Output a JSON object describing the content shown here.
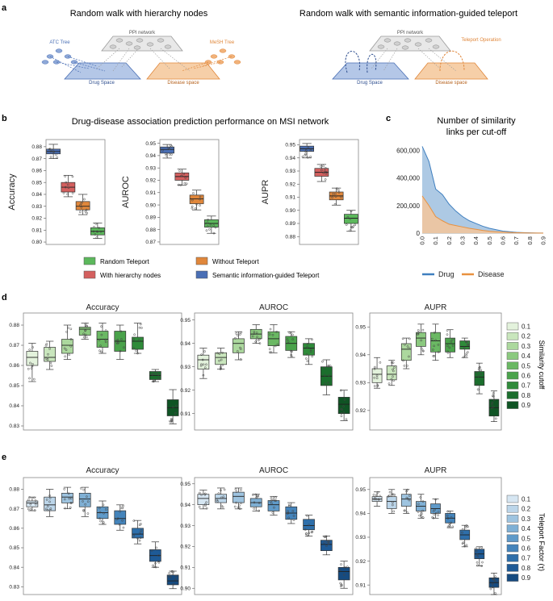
{
  "panels": {
    "a": {
      "letter": "a",
      "title_left": "Random walk with hierarchy nodes",
      "title_right": "Random walk with semantic information-guided teleport",
      "left": {
        "ppi": "PPI network",
        "atc": "ATC Tree",
        "mesh": "MeSH Tree",
        "drug": "Drug Space",
        "disease": "Disease space"
      },
      "right": {
        "ppi": "PPI network",
        "teleport": "Teleport Operation",
        "drug": "Drug Space",
        "disease": "Disease space"
      }
    },
    "b": {
      "letter": "b",
      "title": "Drug-disease association prediction performance on MSI network",
      "legend": [
        "Random Teleport",
        "With hierarchy nodes",
        "Without Teleport",
        "Semantic information-guided Teleport"
      ]
    },
    "c": {
      "letter": "c",
      "title_line1": "Number of similarity",
      "title_line2": "links per cut-off"
    },
    "d": {
      "letter": "d",
      "legend_title": "Similarity cutoff"
    },
    "e": {
      "letter": "e",
      "legend_title": "Teleport Factor (τ)"
    }
  },
  "colors": {
    "b": [
      "#4a6fb5",
      "#d4605f",
      "#e0873b",
      "#5cb85c"
    ],
    "d": [
      "#e3f2dc",
      "#c9e6bd",
      "#acd89e",
      "#8bc97f",
      "#6ab863",
      "#4aa34b",
      "#2f8b3a",
      "#1b6e2d",
      "#0f5424"
    ],
    "e": [
      "#d6e6f2",
      "#bcd6ea",
      "#9ec4e0",
      "#7fb0d5",
      "#5f9ac9",
      "#4484bb",
      "#2e6faa",
      "#1e5a96",
      "#164b80"
    ]
  },
  "chart_data": [
    {
      "id": "b-accuracy",
      "type": "box",
      "ylabel": "Accuracy",
      "ylim": [
        0.798,
        0.886
      ],
      "ticks": [
        0.8,
        0.81,
        0.82,
        0.83,
        0.84,
        0.85,
        0.86,
        0.87,
        0.88
      ],
      "tick_labels": [
        "0.80",
        "0.81",
        "0.82",
        "0.83",
        "0.84",
        "0.85",
        "0.86",
        "0.87",
        "0.88"
      ],
      "boxes": [
        {
          "min": 0.87,
          "q1": 0.874,
          "med": 0.876,
          "q3": 0.878,
          "max": 0.882
        },
        {
          "min": 0.838,
          "q1": 0.842,
          "med": 0.846,
          "q3": 0.85,
          "max": 0.856
        },
        {
          "min": 0.823,
          "q1": 0.827,
          "med": 0.83,
          "q3": 0.834,
          "max": 0.84
        },
        {
          "min": 0.803,
          "q1": 0.806,
          "med": 0.809,
          "q3": 0.812,
          "max": 0.816
        }
      ]
    },
    {
      "id": "b-auroc",
      "type": "box",
      "ylabel": "AUROC",
      "ylim": [
        0.868,
        0.953
      ],
      "ticks": [
        0.87,
        0.88,
        0.89,
        0.9,
        0.91,
        0.92,
        0.93,
        0.94,
        0.95
      ],
      "tick_labels": [
        "0.87",
        "0.88",
        "0.89",
        "0.90",
        "0.91",
        "0.92",
        "0.93",
        "0.94",
        "0.95"
      ],
      "boxes": [
        {
          "min": 0.938,
          "q1": 0.942,
          "med": 0.945,
          "q3": 0.947,
          "max": 0.949
        },
        {
          "min": 0.916,
          "q1": 0.92,
          "med": 0.923,
          "q3": 0.926,
          "max": 0.929
        },
        {
          "min": 0.896,
          "q1": 0.901,
          "med": 0.905,
          "q3": 0.908,
          "max": 0.912
        },
        {
          "min": 0.877,
          "q1": 0.882,
          "med": 0.885,
          "q3": 0.888,
          "max": 0.891
        }
      ]
    },
    {
      "id": "b-aupr",
      "type": "box",
      "ylabel": "AUPR",
      "ylim": [
        0.874,
        0.954
      ],
      "ticks": [
        0.88,
        0.89,
        0.9,
        0.91,
        0.92,
        0.93,
        0.94,
        0.95
      ],
      "tick_labels": [
        "0.88",
        "0.89",
        "0.90",
        "0.91",
        "0.92",
        "0.93",
        "0.94",
        "0.95"
      ],
      "boxes": [
        {
          "min": 0.94,
          "q1": 0.945,
          "med": 0.947,
          "q3": 0.949,
          "max": 0.951
        },
        {
          "min": 0.922,
          "q1": 0.926,
          "med": 0.929,
          "q3": 0.932,
          "max": 0.935
        },
        {
          "min": 0.904,
          "q1": 0.908,
          "med": 0.911,
          "q3": 0.914,
          "max": 0.917
        },
        {
          "min": 0.884,
          "q1": 0.89,
          "med": 0.894,
          "q3": 0.897,
          "max": 0.9
        }
      ]
    },
    {
      "id": "c-links",
      "type": "area",
      "x": [
        0.0,
        0.05,
        0.1,
        0.15,
        0.2,
        0.25,
        0.3,
        0.35,
        0.4,
        0.45,
        0.5,
        0.55,
        0.6,
        0.65,
        0.7,
        0.75,
        0.8,
        0.85,
        0.9
      ],
      "xtick_labels": [
        "0.0",
        "0.1",
        "0.2",
        "0.3",
        "0.4",
        "0.5",
        "0.6",
        "0.7",
        "0.8",
        "0.9"
      ],
      "ylim": [
        0,
        650000
      ],
      "ticks": [
        0,
        200000,
        400000,
        600000
      ],
      "tick_labels": [
        "0",
        "200,000",
        "400,000",
        "600,000"
      ],
      "series": [
        {
          "name": "Drug",
          "values": [
            630000,
            520000,
            320000,
            280000,
            210000,
            160000,
            120000,
            90000,
            70000,
            50000,
            35000,
            25000,
            15000,
            10000,
            6000,
            4000,
            2000,
            1000,
            500
          ]
        },
        {
          "name": "Disease",
          "values": [
            270000,
            200000,
            120000,
            90000,
            65000,
            55000,
            45000,
            35000,
            28000,
            20000,
            14000,
            10000,
            7000,
            5000,
            3000,
            2000,
            1000,
            500,
            200
          ]
        }
      ],
      "legend": [
        "Drug",
        "Disease"
      ]
    },
    {
      "id": "d-accuracy",
      "type": "box",
      "title": "Accuracy",
      "ylim": [
        0.828,
        0.886
      ],
      "ticks": [
        0.83,
        0.84,
        0.85,
        0.86,
        0.87,
        0.88
      ],
      "tick_labels": [
        "0.83",
        "0.84",
        "0.85",
        "0.86",
        "0.87",
        "0.88"
      ],
      "boxes": [
        {
          "min": 0.852,
          "q1": 0.86,
          "med": 0.864,
          "q3": 0.867,
          "max": 0.871
        },
        {
          "min": 0.858,
          "q1": 0.862,
          "med": 0.864,
          "q3": 0.869,
          "max": 0.872
        },
        {
          "min": 0.863,
          "q1": 0.866,
          "med": 0.87,
          "q3": 0.873,
          "max": 0.88
        },
        {
          "min": 0.873,
          "q1": 0.875,
          "med": 0.878,
          "q3": 0.879,
          "max": 0.881
        },
        {
          "min": 0.866,
          "q1": 0.869,
          "med": 0.873,
          "q3": 0.877,
          "max": 0.881
        },
        {
          "min": 0.863,
          "q1": 0.867,
          "med": 0.872,
          "q3": 0.877,
          "max": 0.88
        },
        {
          "min": 0.866,
          "q1": 0.868,
          "med": 0.872,
          "q3": 0.874,
          "max": 0.881
        },
        {
          "min": 0.852,
          "q1": 0.853,
          "med": 0.855,
          "q3": 0.857,
          "max": 0.858
        },
        {
          "min": 0.831,
          "q1": 0.835,
          "med": 0.839,
          "q3": 0.843,
          "max": 0.848
        }
      ]
    },
    {
      "id": "d-auroc",
      "type": "box",
      "title": "AUROC",
      "ylim": [
        0.903,
        0.953
      ],
      "ticks": [
        0.91,
        0.92,
        0.93,
        0.94,
        0.95
      ],
      "tick_labels": [
        "0.91",
        "0.92",
        "0.93",
        "0.94",
        "0.95"
      ],
      "boxes": [
        {
          "min": 0.925,
          "q1": 0.929,
          "med": 0.933,
          "q3": 0.935,
          "max": 0.938
        },
        {
          "min": 0.929,
          "q1": 0.931,
          "med": 0.934,
          "q3": 0.936,
          "max": 0.938
        },
        {
          "min": 0.933,
          "q1": 0.936,
          "med": 0.94,
          "q3": 0.942,
          "max": 0.945
        },
        {
          "min": 0.94,
          "q1": 0.942,
          "med": 0.944,
          "q3": 0.946,
          "max": 0.948
        },
        {
          "min": 0.936,
          "q1": 0.939,
          "med": 0.942,
          "q3": 0.945,
          "max": 0.948
        },
        {
          "min": 0.934,
          "q1": 0.937,
          "med": 0.94,
          "q3": 0.943,
          "max": 0.945
        },
        {
          "min": 0.931,
          "q1": 0.935,
          "med": 0.938,
          "q3": 0.94,
          "max": 0.942
        },
        {
          "min": 0.918,
          "q1": 0.922,
          "med": 0.926,
          "q3": 0.93,
          "max": 0.933
        },
        {
          "min": 0.907,
          "q1": 0.91,
          "med": 0.914,
          "q3": 0.917,
          "max": 0.92
        }
      ]
    },
    {
      "id": "d-aupr",
      "type": "box",
      "title": "AUPR",
      "ylim": [
        0.913,
        0.955
      ],
      "ticks": [
        0.92,
        0.93,
        0.94,
        0.95
      ],
      "tick_labels": [
        "0.92",
        "0.93",
        "0.94",
        "0.95"
      ],
      "boxes": [
        {
          "min": 0.928,
          "q1": 0.93,
          "med": 0.933,
          "q3": 0.935,
          "max": 0.939
        },
        {
          "min": 0.929,
          "q1": 0.931,
          "med": 0.933,
          "q3": 0.936,
          "max": 0.938
        },
        {
          "min": 0.935,
          "q1": 0.938,
          "med": 0.942,
          "q3": 0.944,
          "max": 0.946
        },
        {
          "min": 0.94,
          "q1": 0.943,
          "med": 0.946,
          "q3": 0.948,
          "max": 0.951
        },
        {
          "min": 0.938,
          "q1": 0.941,
          "med": 0.945,
          "q3": 0.948,
          "max": 0.951
        },
        {
          "min": 0.939,
          "q1": 0.941,
          "med": 0.944,
          "q3": 0.946,
          "max": 0.949
        },
        {
          "min": 0.939,
          "q1": 0.942,
          "med": 0.943,
          "q3": 0.945,
          "max": 0.946
        },
        {
          "min": 0.926,
          "q1": 0.929,
          "med": 0.932,
          "q3": 0.934,
          "max": 0.937
        },
        {
          "min": 0.916,
          "q1": 0.918,
          "med": 0.921,
          "q3": 0.924,
          "max": 0.927
        }
      ]
    },
    {
      "id": "e-accuracy",
      "type": "box",
      "title": "Accuracy",
      "ylim": [
        0.826,
        0.886
      ],
      "ticks": [
        0.83,
        0.84,
        0.85,
        0.86,
        0.87,
        0.88
      ],
      "tick_labels": [
        "0.83",
        "0.84",
        "0.85",
        "0.86",
        "0.87",
        "0.88"
      ],
      "boxes": [
        {
          "min": 0.869,
          "q1": 0.871,
          "med": 0.873,
          "q3": 0.874,
          "max": 0.876
        },
        {
          "min": 0.866,
          "q1": 0.869,
          "med": 0.872,
          "q3": 0.876,
          "max": 0.88
        },
        {
          "min": 0.87,
          "q1": 0.873,
          "med": 0.876,
          "q3": 0.878,
          "max": 0.881
        },
        {
          "min": 0.866,
          "q1": 0.871,
          "med": 0.875,
          "q3": 0.878,
          "max": 0.881
        },
        {
          "min": 0.862,
          "q1": 0.865,
          "med": 0.868,
          "q3": 0.871,
          "max": 0.874
        },
        {
          "min": 0.859,
          "q1": 0.862,
          "med": 0.865,
          "q3": 0.869,
          "max": 0.872
        },
        {
          "min": 0.852,
          "q1": 0.855,
          "med": 0.857,
          "q3": 0.86,
          "max": 0.864
        },
        {
          "min": 0.84,
          "q1": 0.843,
          "med": 0.846,
          "q3": 0.849,
          "max": 0.853
        },
        {
          "min": 0.829,
          "q1": 0.831,
          "med": 0.833,
          "q3": 0.836,
          "max": 0.838
        }
      ]
    },
    {
      "id": "e-auroc",
      "type": "box",
      "title": "AUROC",
      "ylim": [
        0.897,
        0.953
      ],
      "ticks": [
        0.9,
        0.91,
        0.92,
        0.93,
        0.94,
        0.95
      ],
      "tick_labels": [
        "0.90",
        "0.91",
        "0.92",
        "0.93",
        "0.94",
        "0.95"
      ],
      "boxes": [
        {
          "min": 0.938,
          "q1": 0.94,
          "med": 0.943,
          "q3": 0.945,
          "max": 0.947
        },
        {
          "min": 0.938,
          "q1": 0.941,
          "med": 0.943,
          "q3": 0.945,
          "max": 0.948
        },
        {
          "min": 0.938,
          "q1": 0.941,
          "med": 0.944,
          "q3": 0.946,
          "max": 0.948
        },
        {
          "min": 0.937,
          "q1": 0.939,
          "med": 0.941,
          "q3": 0.943,
          "max": 0.945
        },
        {
          "min": 0.935,
          "q1": 0.937,
          "med": 0.94,
          "q3": 0.942,
          "max": 0.944
        },
        {
          "min": 0.931,
          "q1": 0.933,
          "med": 0.936,
          "q3": 0.939,
          "max": 0.941
        },
        {
          "min": 0.925,
          "q1": 0.928,
          "med": 0.93,
          "q3": 0.933,
          "max": 0.935
        },
        {
          "min": 0.916,
          "q1": 0.918,
          "med": 0.921,
          "q3": 0.923,
          "max": 0.925
        },
        {
          "min": 0.9,
          "q1": 0.904,
          "med": 0.908,
          "q3": 0.91,
          "max": 0.913
        }
      ]
    },
    {
      "id": "e-aupr",
      "type": "box",
      "title": "AUPR",
      "ylim": [
        0.906,
        0.955
      ],
      "ticks": [
        0.91,
        0.92,
        0.93,
        0.94,
        0.95
      ],
      "tick_labels": [
        "0.91",
        "0.92",
        "0.93",
        "0.94",
        "0.95"
      ],
      "boxes": [
        {
          "min": 0.943,
          "q1": 0.945,
          "med": 0.946,
          "q3": 0.947,
          "max": 0.949
        },
        {
          "min": 0.94,
          "q1": 0.942,
          "med": 0.945,
          "q3": 0.947,
          "max": 0.95
        },
        {
          "min": 0.94,
          "q1": 0.943,
          "med": 0.946,
          "q3": 0.948,
          "max": 0.95
        },
        {
          "min": 0.938,
          "q1": 0.941,
          "med": 0.943,
          "q3": 0.945,
          "max": 0.948
        },
        {
          "min": 0.938,
          "q1": 0.94,
          "med": 0.942,
          "q3": 0.944,
          "max": 0.946
        },
        {
          "min": 0.934,
          "q1": 0.936,
          "med": 0.938,
          "q3": 0.94,
          "max": 0.941
        },
        {
          "min": 0.926,
          "q1": 0.929,
          "med": 0.931,
          "q3": 0.933,
          "max": 0.935
        },
        {
          "min": 0.918,
          "q1": 0.921,
          "med": 0.923,
          "q3": 0.925,
          "max": 0.926
        },
        {
          "min": 0.906,
          "q1": 0.909,
          "med": 0.911,
          "q3": 0.913,
          "max": 0.915
        }
      ]
    }
  ],
  "legend_items": [
    "0.1",
    "0.2",
    "0.3",
    "0.4",
    "0.5",
    "0.6",
    "0.7",
    "0.8",
    "0.9"
  ]
}
